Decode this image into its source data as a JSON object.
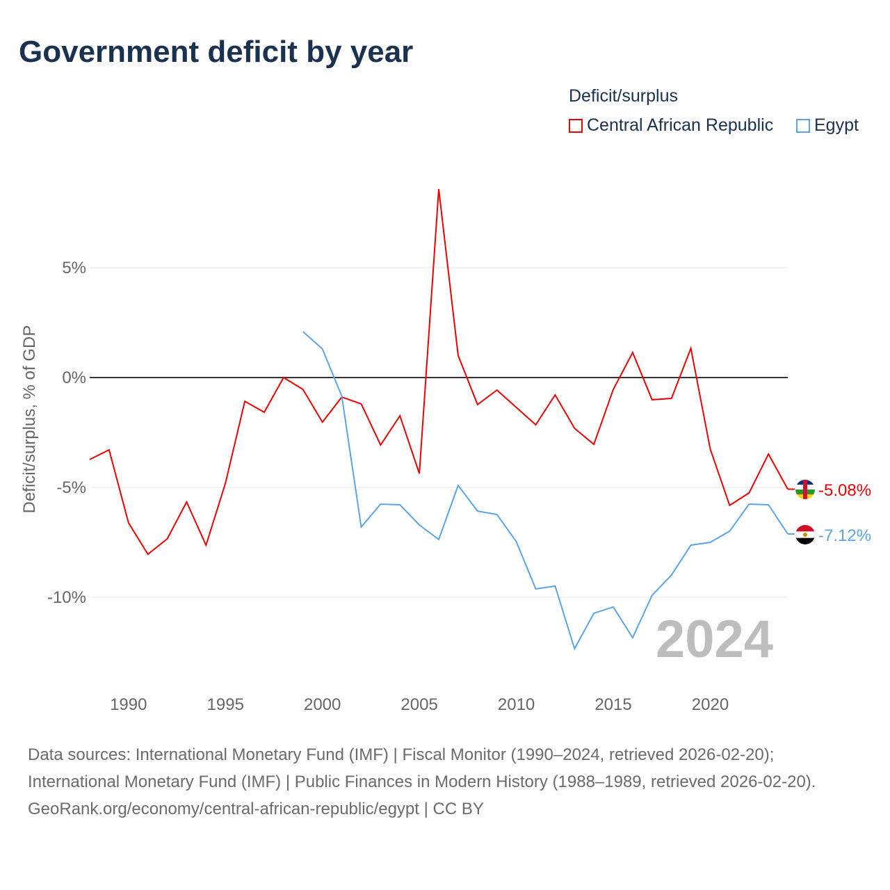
{
  "chart_data": {
    "type": "line",
    "title": "Government deficit by year",
    "ylabel": "Deficit/surplus, % of GDP",
    "xlabel": "",
    "legend_title": "Deficit/surplus",
    "legend_position": "top-right",
    "xlim": [
      1988,
      2024
    ],
    "ylim": [
      -13,
      9
    ],
    "yticks": [
      {
        "v": 5,
        "label": "5%"
      },
      {
        "v": 0,
        "label": "0%"
      },
      {
        "v": -5,
        "label": "-5%"
      },
      {
        "v": -10,
        "label": "-10%"
      }
    ],
    "xticks": [
      1990,
      1995,
      2000,
      2005,
      2010,
      2015,
      2020
    ],
    "year_watermark": "2024",
    "series": [
      {
        "name": "Central African Republic",
        "color": "#ee0000",
        "end_label": "-5.08%",
        "x": [
          1988,
          1989,
          1990,
          1991,
          1992,
          1993,
          1994,
          1995,
          1996,
          1997,
          1998,
          1999,
          2000,
          2001,
          2002,
          2003,
          2004,
          2005,
          2006,
          2007,
          2008,
          2009,
          2010,
          2011,
          2012,
          2013,
          2014,
          2015,
          2016,
          2017,
          2018,
          2019,
          2020,
          2021,
          2022,
          2023,
          2024
        ],
        "values": [
          -3.73,
          -3.29,
          -6.61,
          -8.04,
          -7.34,
          -5.66,
          -7.63,
          -4.81,
          -1.08,
          -1.58,
          0,
          -0.54,
          -2.03,
          -0.89,
          -1.2,
          -3.07,
          -1.74,
          -4.37,
          8.58,
          1.01,
          -1.23,
          -0.57,
          -1.36,
          -2.15,
          -0.79,
          -2.31,
          -3.04,
          -0.54,
          1.14,
          -1.01,
          -0.95,
          1.33,
          -3.26,
          -5.82,
          -5.25,
          -3.48,
          -5.08
        ]
      },
      {
        "name": "Egypt",
        "color": "#5ba4e8",
        "end_label": "-7.12%",
        "x": [
          1999,
          2000,
          2001,
          2002,
          2003,
          2004,
          2005,
          2006,
          2007,
          2008,
          2009,
          2010,
          2011,
          2012,
          2013,
          2014,
          2015,
          2016,
          2017,
          2018,
          2019,
          2020,
          2021,
          2022,
          2023,
          2024
        ],
        "values": [
          2.09,
          1.3,
          -0.85,
          -6.8,
          -5.76,
          -5.79,
          -6.71,
          -7.37,
          -4.91,
          -6.08,
          -6.23,
          -7.47,
          -9.62,
          -9.49,
          -12.34,
          -10.73,
          -10.44,
          -11.84,
          -9.91,
          -8.99,
          -7.63,
          -7.5,
          -6.99,
          -5.76,
          -5.79,
          -7.12
        ]
      }
    ]
  },
  "footer": {
    "sources": "Data sources: International Monetary Fund (IMF) | Fiscal Monitor (1990–2024, retrieved 2026-02-20); International Monetary Fund (IMF) | Public Finances in Modern History (1988–1989, retrieved 2026-02-20).",
    "link": "GeoRank.org/economy/central-african-republic/egypt | CC BY"
  }
}
